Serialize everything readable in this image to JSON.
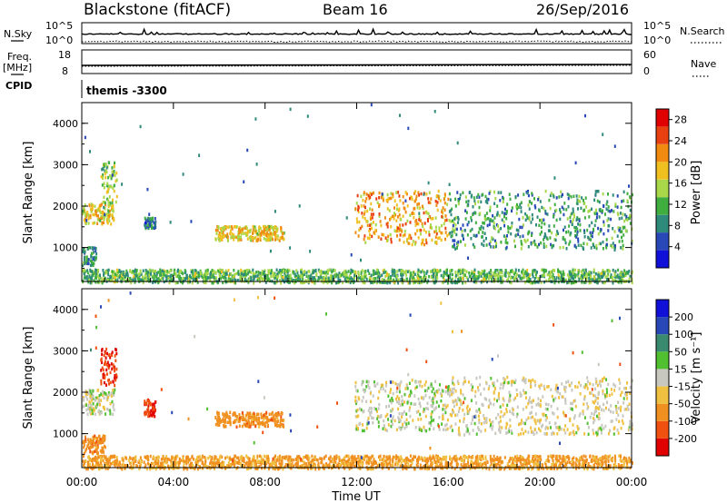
{
  "header": {
    "station": "Blackstone (fitACF)",
    "beam": "Beam 16",
    "date": "26/Sep/2016"
  },
  "top_panels": {
    "nsky_label": "N.Sky",
    "nsearch_label": "N.Search",
    "noise_ticks_left": [
      "10^5",
      "10^0"
    ],
    "noise_ticks_right": [
      "10^5",
      "10^0"
    ],
    "freq_label": "Freq.",
    "freq_unit": "[MHz]",
    "freq_ticks": [
      "18",
      "8"
    ],
    "nave_label": "Nave",
    "nave_ticks": [
      "60",
      "0"
    ],
    "cpid_label": "CPID",
    "cpid_value": "themis -3300"
  },
  "colors": {
    "power": [
      "#1010d8",
      "#2848b8",
      "#2e8a7a",
      "#3fae3f",
      "#a8d84a",
      "#f0c020",
      "#f08a10",
      "#e84010",
      "#e00000"
    ],
    "velocity": [
      "#e00000",
      "#f05010",
      "#f09020",
      "#f0c040",
      "#c8c8c0",
      "#50c030",
      "#3a8a70",
      "#2848b8",
      "#1010d8"
    ]
  },
  "chart_data": [
    {
      "type": "heatmap",
      "name": "power",
      "xlabel": "",
      "ylabel": "Slant Range [km]",
      "xlim": [
        0,
        24
      ],
      "ylim": [
        180,
        4500
      ],
      "yticks": [
        "1000",
        "2000",
        "3000",
        "4000"
      ],
      "colorbar": {
        "label": "Power [dB]",
        "ticks": [
          "4",
          "8",
          "12",
          "16",
          "20",
          "24",
          "28"
        ],
        "range": [
          0,
          30
        ]
      },
      "scatter_regions": [
        {
          "hours": [
            0.0,
            1.4
          ],
          "range_km": [
            1600,
            2100
          ],
          "power_db": 18
        },
        {
          "hours": [
            0.8,
            1.5
          ],
          "range_km": [
            2100,
            3100
          ],
          "power_db": 14
        },
        {
          "hours": [
            0.0,
            0.6
          ],
          "range_km": [
            600,
            1050
          ],
          "power_db": 10
        },
        {
          "hours": [
            2.7,
            3.2
          ],
          "range_km": [
            1500,
            1750
          ],
          "power_db": 8
        },
        {
          "hours": [
            5.8,
            8.8
          ],
          "range_km": [
            1200,
            1550
          ],
          "power_db": 18
        },
        {
          "hours": [
            11.9,
            16.0
          ],
          "range_km": [
            1100,
            2400
          ],
          "power_db": 20
        },
        {
          "hours": [
            16.0,
            24.0
          ],
          "range_km": [
            1000,
            2400
          ],
          "power_db": 10
        },
        {
          "hours": [
            0.0,
            24.0
          ],
          "range_km": [
            180,
            500
          ],
          "power_db": 12
        }
      ]
    },
    {
      "type": "heatmap",
      "name": "velocity",
      "xlabel": "Time UT",
      "ylabel": "Slant Range [km]",
      "xticks": [
        "00:00",
        "04:00",
        "08:00",
        "12:00",
        "16:00",
        "20:00",
        "00:00"
      ],
      "xlim": [
        0,
        24
      ],
      "ylim": [
        180,
        4500
      ],
      "yticks": [
        "1000",
        "2000",
        "3000",
        "4000"
      ],
      "colorbar": {
        "label": "Velocity [m s⁻¹]",
        "ticks": [
          "-200",
          "-100",
          "-50",
          "-15",
          "15",
          "50",
          "100",
          "200"
        ],
        "range": [
          -250,
          250
        ]
      },
      "scatter_regions": [
        {
          "hours": [
            0.0,
            1.4
          ],
          "range_km": [
            1500,
            2100
          ],
          "velocity": 0
        },
        {
          "hours": [
            0.8,
            1.5
          ],
          "range_km": [
            2200,
            3100
          ],
          "velocity": -200
        },
        {
          "hours": [
            0.0,
            1.0
          ],
          "range_km": [
            550,
            1000
          ],
          "velocity": -75
        },
        {
          "hours": [
            2.7,
            3.2
          ],
          "range_km": [
            1450,
            1850
          ],
          "velocity": -200
        },
        {
          "hours": [
            5.8,
            8.8
          ],
          "range_km": [
            1200,
            1550
          ],
          "velocity": -75
        },
        {
          "hours": [
            11.9,
            16.0
          ],
          "range_km": [
            1100,
            2300
          ],
          "velocity": 0
        },
        {
          "hours": [
            16.0,
            24.0
          ],
          "range_km": [
            1000,
            2400
          ],
          "velocity": -10
        },
        {
          "hours": [
            0.0,
            24.0
          ],
          "range_km": [
            180,
            500
          ],
          "velocity": -60
        }
      ]
    }
  ]
}
